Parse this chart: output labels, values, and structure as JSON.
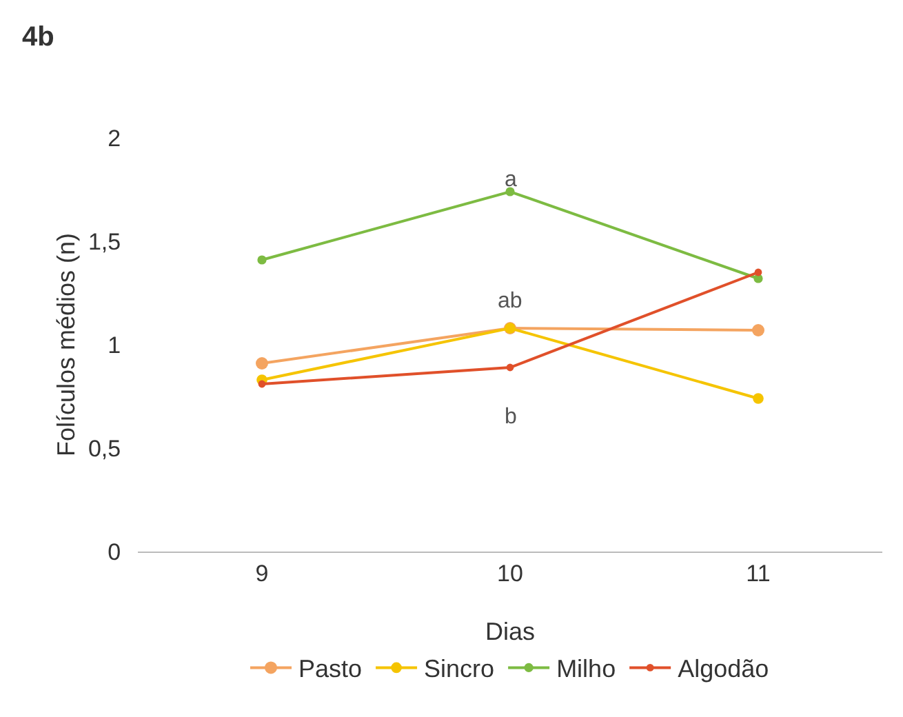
{
  "chart_data": {
    "type": "line",
    "title": "4b",
    "xlabel": "Dias",
    "ylabel": "Folículos médios (n)",
    "categories": [
      "9",
      "10",
      "11"
    ],
    "series": [
      {
        "name": "Pasto",
        "color": "#f4a460",
        "values": [
          0.91,
          1.08,
          1.07
        ]
      },
      {
        "name": "Sincro",
        "color": "#f5c400",
        "values": [
          0.83,
          1.08,
          0.74
        ]
      },
      {
        "name": "Milho",
        "color": "#7dbb42",
        "values": [
          1.41,
          1.74,
          1.32
        ]
      },
      {
        "name": "Algodão",
        "color": "#e0502a",
        "values": [
          0.81,
          0.89,
          1.35
        ]
      }
    ],
    "ylim": [
      0,
      2
    ],
    "yticks": [
      0,
      {
        "value": 0.5,
        "label": "0,5"
      },
      1,
      {
        "value": 1.5,
        "label": "1,5"
      },
      2
    ],
    "annotations": [
      "a",
      "ab",
      "b"
    ],
    "grid": false,
    "legend": "bottom",
    "marker": "circle",
    "line_style": "solid"
  }
}
